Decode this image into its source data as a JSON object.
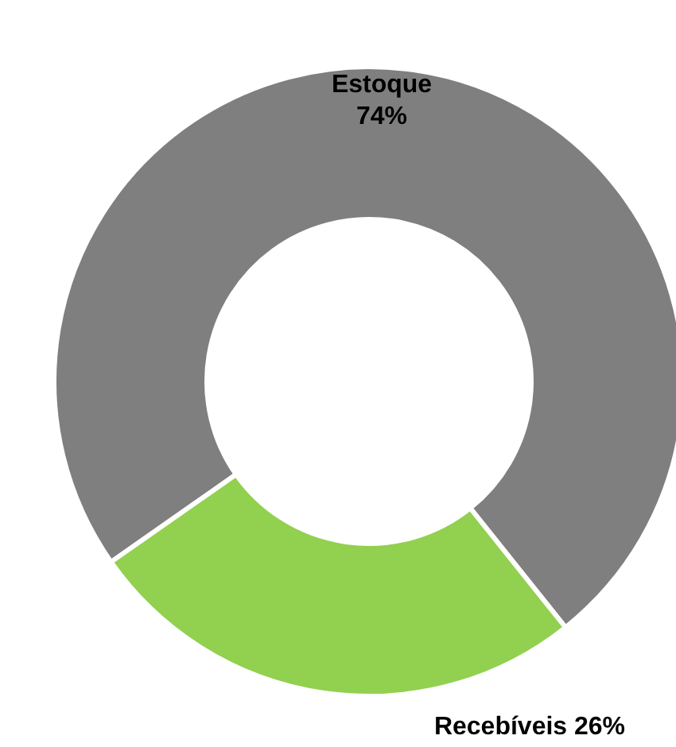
{
  "chart_data": {
    "type": "donut",
    "categories": [
      "Estoque",
      "Recebíveis"
    ],
    "values": [
      74,
      26
    ],
    "colors": [
      "#7f7f7f",
      "#92d050"
    ],
    "value_labels": [
      "74%",
      "26%"
    ]
  }
}
